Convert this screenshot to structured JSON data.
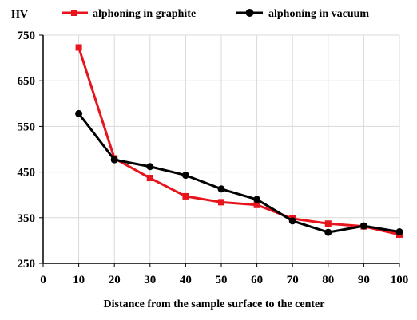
{
  "chart_data": {
    "type": "line",
    "title": "",
    "ylabel": "HV",
    "xlabel": "Distance from the sample surface to the center",
    "xlim": [
      0,
      100
    ],
    "ylim": [
      250,
      750
    ],
    "xticks": [
      0,
      10,
      20,
      30,
      40,
      50,
      60,
      70,
      80,
      90,
      100
    ],
    "yticks": [
      250,
      350,
      450,
      550,
      650,
      750
    ],
    "grid": "vertical and horizontal",
    "legend_position": "top",
    "x": [
      10,
      20,
      30,
      40,
      50,
      60,
      70,
      80,
      90,
      100
    ],
    "series": [
      {
        "name": "alphoning in graphite",
        "color": "#e8141b",
        "marker": "square",
        "values": [
          723,
          480,
          437,
          397,
          384,
          378,
          348,
          337,
          331,
          313
        ]
      },
      {
        "name": "alphoning in vacuum",
        "color": "#000000",
        "marker": "circle",
        "values": [
          578,
          477,
          462,
          443,
          413,
          390,
          343,
          318,
          332,
          319
        ]
      }
    ]
  }
}
